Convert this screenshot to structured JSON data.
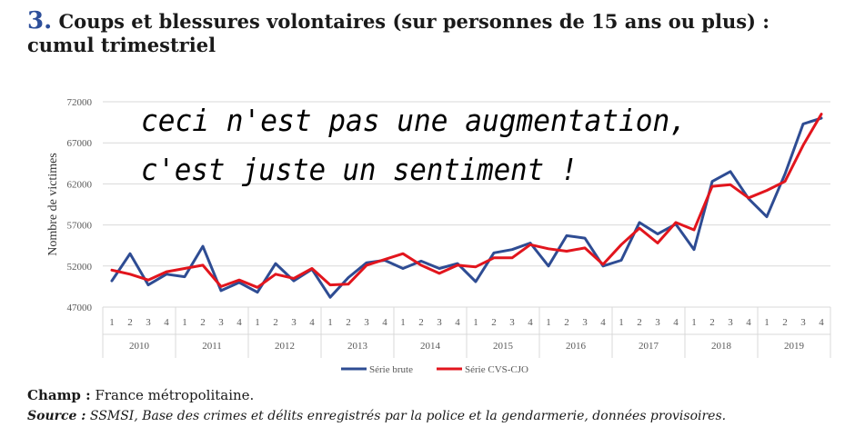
{
  "header": {
    "number": "3.",
    "title": "Coups et blessures volontaires (sur personnes de 15 ans ou plus) : cumul trimestriel"
  },
  "annotation": {
    "line1": "ceci n'est pas une augmentation,",
    "line2": "c'est juste un sentiment !"
  },
  "footer": {
    "champ_label": "Champ :",
    "champ_text": " France métropolitaine.",
    "source_label": "Source :",
    "source_text": " SSMSI, Base des crimes et délits enregistrés par la police et la gendarmerie, données provisoires."
  },
  "colors": {
    "brute": "#2e4c93",
    "cvs": "#e2151d",
    "grid": "#d9d9d9",
    "text": "#595959"
  },
  "chart_data": {
    "type": "line",
    "ylabel": "Nombre de victimes",
    "ylim": [
      47000,
      72000
    ],
    "yticks": [
      47000,
      52000,
      57000,
      62000,
      67000,
      72000
    ],
    "ytick_labels": [
      "47000",
      "52000",
      "57000",
      "62000",
      "67000",
      "72000"
    ],
    "years": [
      "2010",
      "2011",
      "2012",
      "2013",
      "2014",
      "2015",
      "2016",
      "2017",
      "2018",
      "2019"
    ],
    "quarters": [
      "1",
      "2",
      "3",
      "4"
    ],
    "legend_position": "bottom",
    "series": [
      {
        "name": "Série brute",
        "color": "#2e4c93",
        "values": [
          50200,
          53500,
          49700,
          51000,
          50700,
          54400,
          49000,
          50000,
          48800,
          52300,
          50200,
          51600,
          48200,
          50600,
          52400,
          52700,
          51700,
          52600,
          51700,
          52300,
          50100,
          53600,
          54000,
          54800,
          52000,
          55700,
          55400,
          52000,
          52700,
          57300,
          55900,
          57100,
          54000,
          62300,
          63500,
          60200,
          58000,
          63200,
          69300,
          70000
        ]
      },
      {
        "name": "Série CVS-CJO",
        "color": "#e2151d",
        "values": [
          51500,
          51000,
          50300,
          51300,
          51700,
          52100,
          49500,
          50300,
          49400,
          51000,
          50500,
          51700,
          49700,
          49800,
          52100,
          52800,
          53500,
          52100,
          51100,
          52100,
          51900,
          53000,
          53000,
          54600,
          54100,
          53800,
          54200,
          52200,
          54600,
          56600,
          54800,
          57300,
          56400,
          61700,
          61900,
          60300,
          61200,
          62300,
          66700,
          70500
        ]
      }
    ]
  }
}
